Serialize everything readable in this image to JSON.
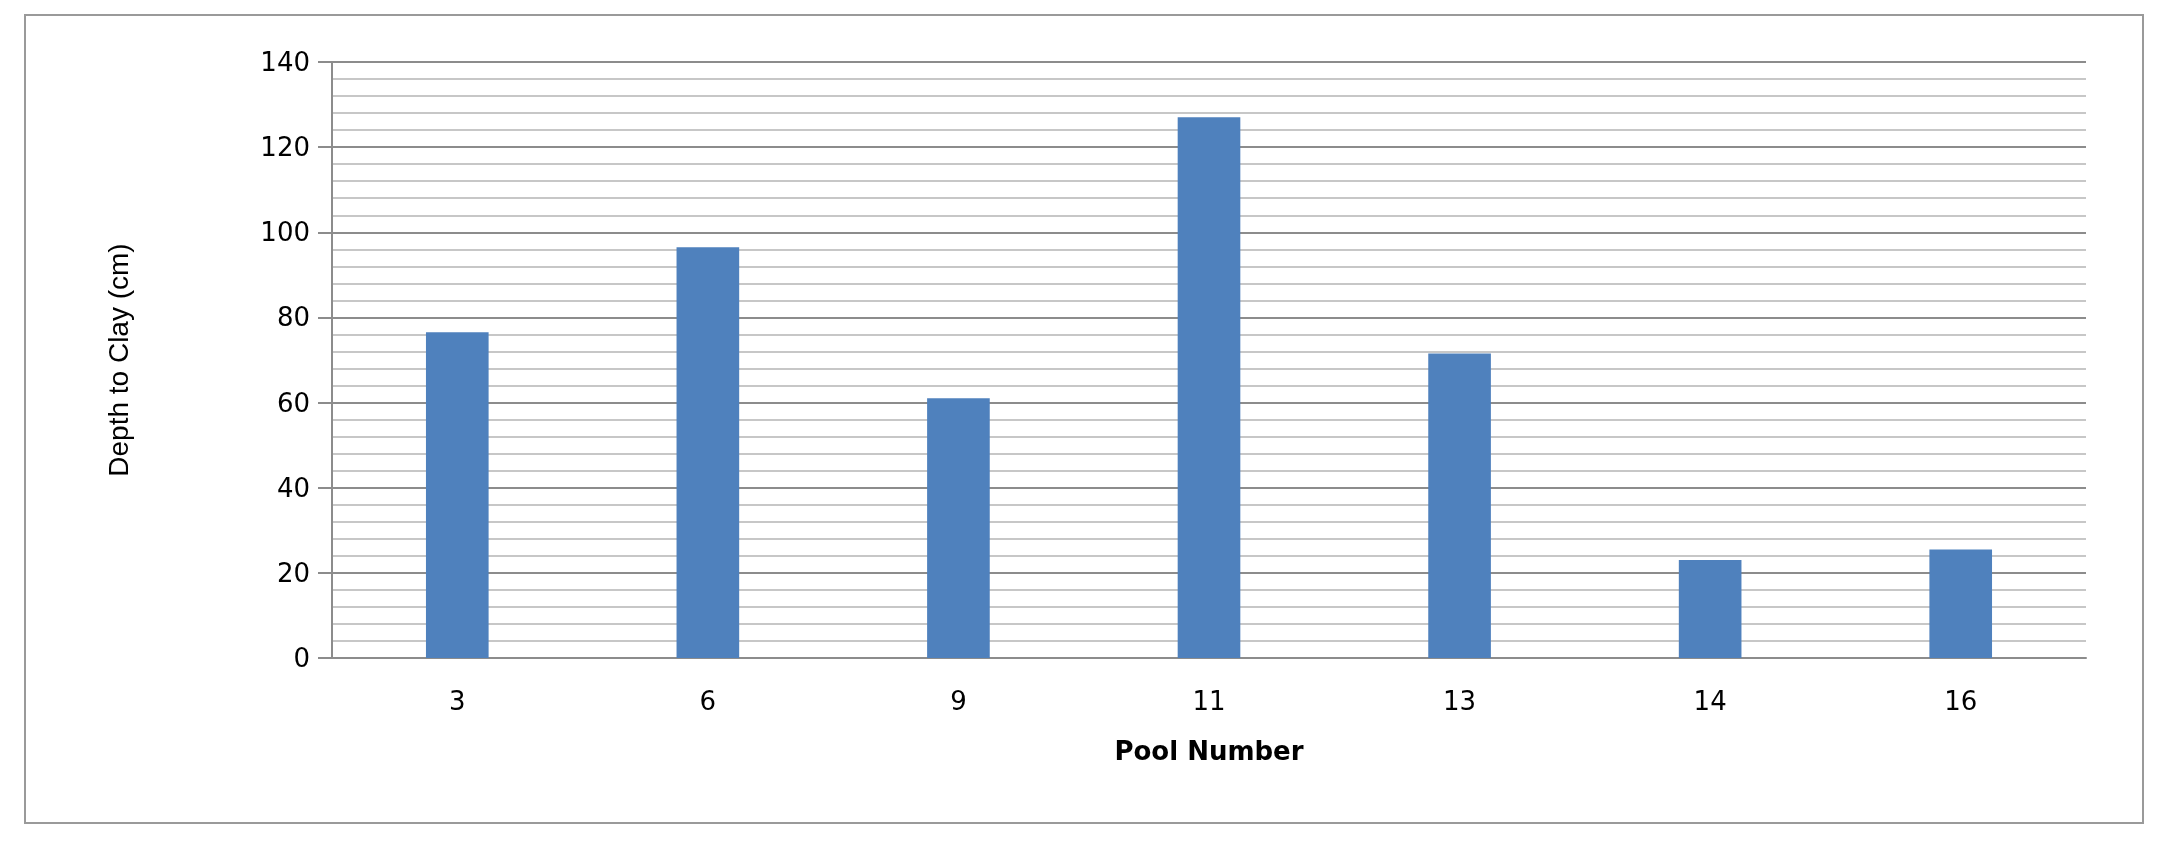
{
  "chart_data": {
    "type": "bar",
    "xlabel": "Pool Number",
    "ylabel": "Depth to Clay (cm)",
    "categories": [
      "3",
      "6",
      "9",
      "11",
      "13",
      "14",
      "16"
    ],
    "values": [
      76.5,
      96.5,
      61,
      127,
      71.5,
      23,
      25.5
    ],
    "color": "#4f81bd",
    "ylim": [
      0,
      140
    ],
    "yticks": [
      0,
      20,
      40,
      60,
      80,
      100,
      120,
      140
    ],
    "grid": true
  }
}
